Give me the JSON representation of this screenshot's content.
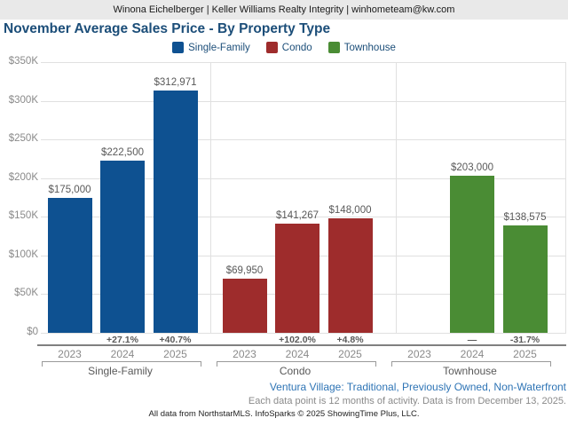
{
  "header": {
    "text": "Winona Eichelberger | Keller Williams Realty Integrity | winhometeam@kw.com"
  },
  "title": "November Average Sales Price - By Property Type",
  "legend": [
    {
      "label": "Single-Family",
      "color": "#0e5191"
    },
    {
      "label": "Condo",
      "color": "#9e2c2c"
    },
    {
      "label": "Townhouse",
      "color": "#4a8c34"
    }
  ],
  "chart_data": {
    "type": "bar",
    "title": "November Average Sales Price - By Property Type",
    "xlabel": "",
    "ylabel": "",
    "ylim": [
      0,
      350000
    ],
    "ytick_step": 50000,
    "ytick_labels": [
      "$0",
      "$50K",
      "$100K",
      "$150K",
      "$200K",
      "$250K",
      "$300K",
      "$350K"
    ],
    "grid": true,
    "legend_position": "top",
    "categories": [
      "2023",
      "2024",
      "2025"
    ],
    "groups": [
      {
        "name": "Single-Family",
        "color": "#0e5191",
        "values": [
          175000,
          222500,
          312971
        ],
        "value_labels": [
          "$175,000",
          "$222,500",
          "$312,971"
        ],
        "pct_change": [
          null,
          "+27.1%",
          "+40.7%"
        ]
      },
      {
        "name": "Condo",
        "color": "#9e2c2c",
        "values": [
          69950,
          141267,
          148000
        ],
        "value_labels": [
          "$69,950",
          "$141,267",
          "$148,000"
        ],
        "pct_change": [
          null,
          "+102.0%",
          "+4.8%"
        ]
      },
      {
        "name": "Townhouse",
        "color": "#4a8c34",
        "values": [
          null,
          203000,
          138575
        ],
        "value_labels": [
          null,
          "$203,000",
          "$138,575"
        ],
        "pct_change": [
          null,
          "—",
          "-31.7%"
        ]
      }
    ]
  },
  "footer": {
    "filter_text": "Ventura Village: Traditional, Previously Owned, Non-Waterfront",
    "data_note": "Each data point is 12 months of activity. Data is from December 13, 2025.",
    "attribution": "All data from NorthstarMLS. InfoSparks © 2025 ShowingTime Plus, LLC."
  }
}
